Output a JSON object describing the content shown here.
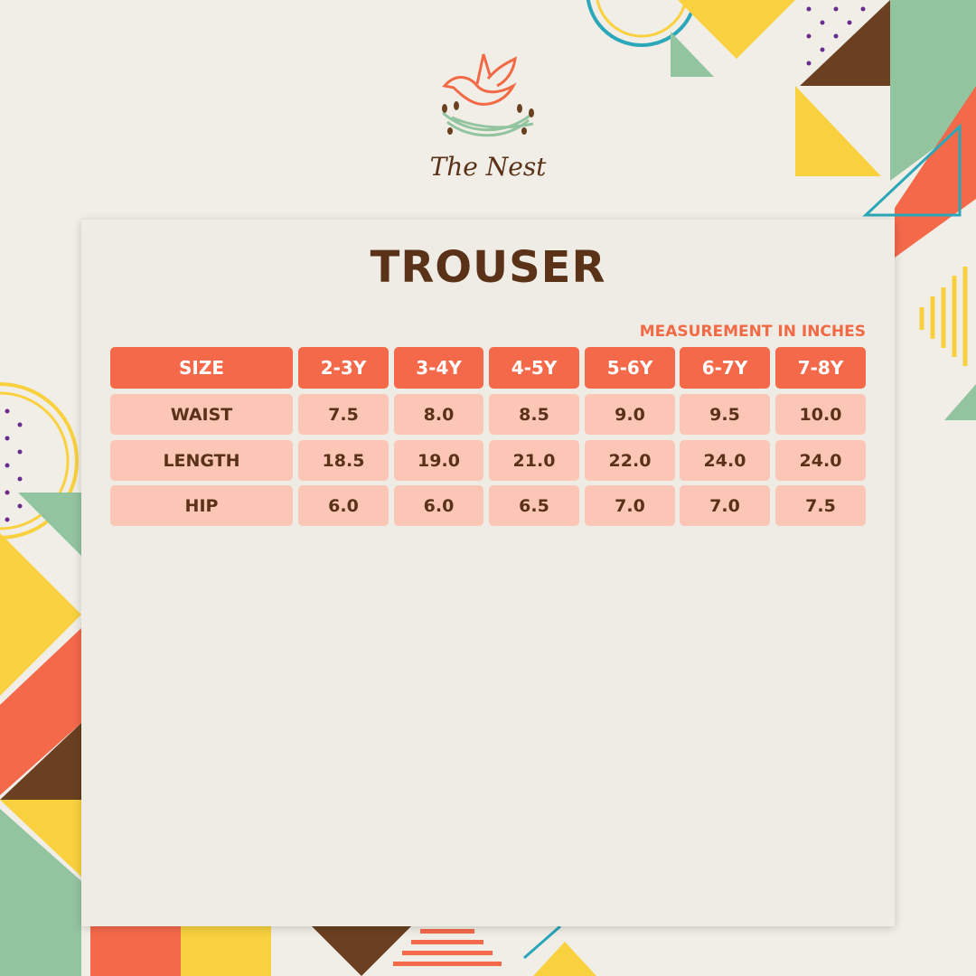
{
  "brand": {
    "name": "The Nest"
  },
  "title": "TROUSER",
  "unit_note": "MEASUREMENT IN INCHES",
  "table": {
    "headers": [
      "SIZE",
      "2-3Y",
      "3-4Y",
      "4-5Y",
      "5-6Y",
      "6-7Y",
      "7-8Y"
    ],
    "rows": [
      [
        "WAIST",
        "7.5",
        "8.0",
        "8.5",
        "9.0",
        "9.5",
        "10.0"
      ],
      [
        "LENGTH",
        "18.5",
        "19.0",
        "21.0",
        "22.0",
        "24.0",
        "24.0"
      ],
      [
        "HIP",
        "6.0",
        "6.0",
        "6.5",
        "7.0",
        "7.0",
        "7.5"
      ]
    ]
  },
  "colors": {
    "accent": "#f4694a",
    "cell": "#fbc6b5",
    "text": "#5a3218",
    "yellow": "#f9d13e",
    "green": "#93c4a0",
    "brown": "#6a4020",
    "teal": "#2aa7b8",
    "purple": "#6a2c8c"
  }
}
